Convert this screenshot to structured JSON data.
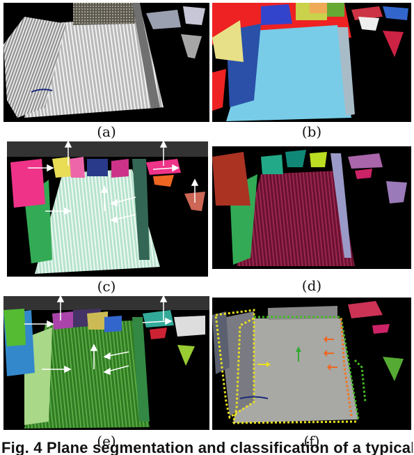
{
  "figure": {
    "panels": [
      {
        "id": "a",
        "label": "(a)",
        "content": "point cloud grayscale"
      },
      {
        "id": "b",
        "label": "(b)",
        "content": "segmentation colors"
      },
      {
        "id": "c",
        "label": "(c)",
        "content": "segments with normal arrows"
      },
      {
        "id": "d",
        "label": "(d)",
        "content": "classified planes"
      },
      {
        "id": "e",
        "label": "(e)",
        "content": "segments with normal arrows"
      },
      {
        "id": "f",
        "label": "(f)",
        "content": "camera image with boundaries"
      }
    ],
    "caption_fig": "Fig. 4",
    "caption_text": " Plane segmentation and classification of a typical"
  },
  "colors": {
    "floor_b": "#6cc8e6",
    "floor_c": "#cfeee0",
    "floor_d": "#7a1535",
    "floor_e": "#3f8f2f"
  }
}
